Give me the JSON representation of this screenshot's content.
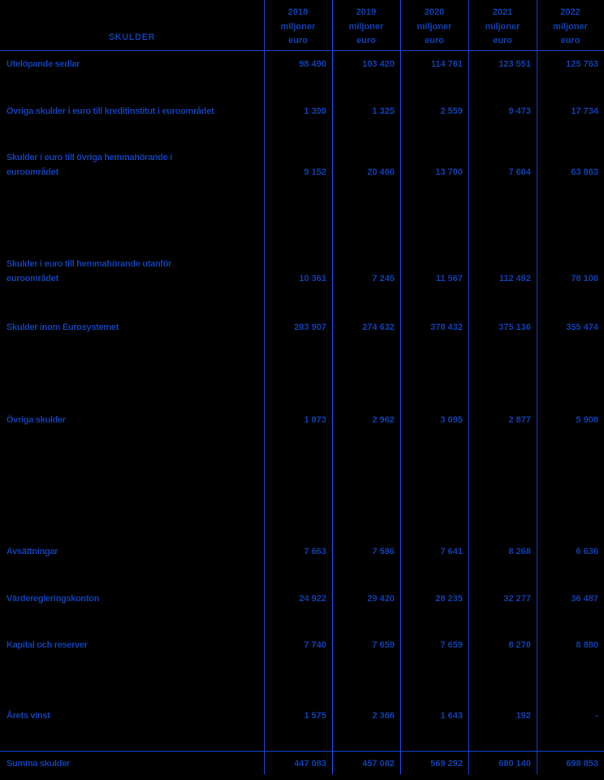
{
  "colors": {
    "background": "#000000",
    "text": "#0e3fae",
    "grid_line": "#1546da"
  },
  "table": {
    "title": "SKULDER",
    "columns": [
      {
        "year": "2018",
        "unit": "miljoner\neuro"
      },
      {
        "year": "2019",
        "unit": "miljoner\neuro"
      },
      {
        "year": "2020",
        "unit": "miljoner\neuro"
      },
      {
        "year": "2021",
        "unit": "miljoner\neuro"
      },
      {
        "year": "2022",
        "unit": "miljoner\neuro"
      }
    ],
    "rows": [
      {
        "label": "Utelöpande sedlar",
        "values": [
          "98 490",
          "103 420",
          "114 761",
          "123 551",
          "125 763"
        ]
      },
      {
        "label": "Övriga skulder i euro till kreditinstitut i euroområdet",
        "values": [
          "1 399",
          "1 325",
          "2 559",
          "9 473",
          "17 734"
        ]
      },
      {
        "label": "Skulder i euro till övriga hemmahörande i\neuroområdet",
        "values": [
          "9 152",
          "20 466",
          "13 700",
          "7 604",
          "63 863"
        ]
      },
      {
        "label": "Skulder i euro till hemmahörande utanför\neuroområdet",
        "values": [
          "10 361",
          "7 245",
          "11 567",
          "112 492",
          "78 108"
        ]
      },
      {
        "label": "Skulder inom Eurosystemet",
        "values": [
          "283 907",
          "274 632",
          "378 432",
          "375 136",
          "355 474"
        ]
      },
      {
        "label": "Övriga skulder",
        "values": [
          "1 873",
          "2 962",
          "3 095",
          "2 877",
          "5 908"
        ]
      },
      {
        "label": "Avsättningar",
        "values": [
          "7 663",
          "7 586",
          "7 641",
          "8 268",
          "6 636"
        ]
      },
      {
        "label": "Värderegleringskonton",
        "values": [
          "24 922",
          "29 420",
          "28 235",
          "32 277",
          "36 487"
        ]
      },
      {
        "label": "Kapital och reserver",
        "values": [
          "7 740",
          "7 659",
          "7 659",
          "8 270",
          "8 880"
        ]
      },
      {
        "label": "Årets vinst",
        "values": [
          "1 575",
          "2 366",
          "1 643",
          "192",
          "-"
        ]
      },
      {
        "label": "Summa skulder",
        "values": [
          "447 083",
          "457 082",
          "569 292",
          "680 140",
          "698 853"
        ]
      }
    ]
  }
}
